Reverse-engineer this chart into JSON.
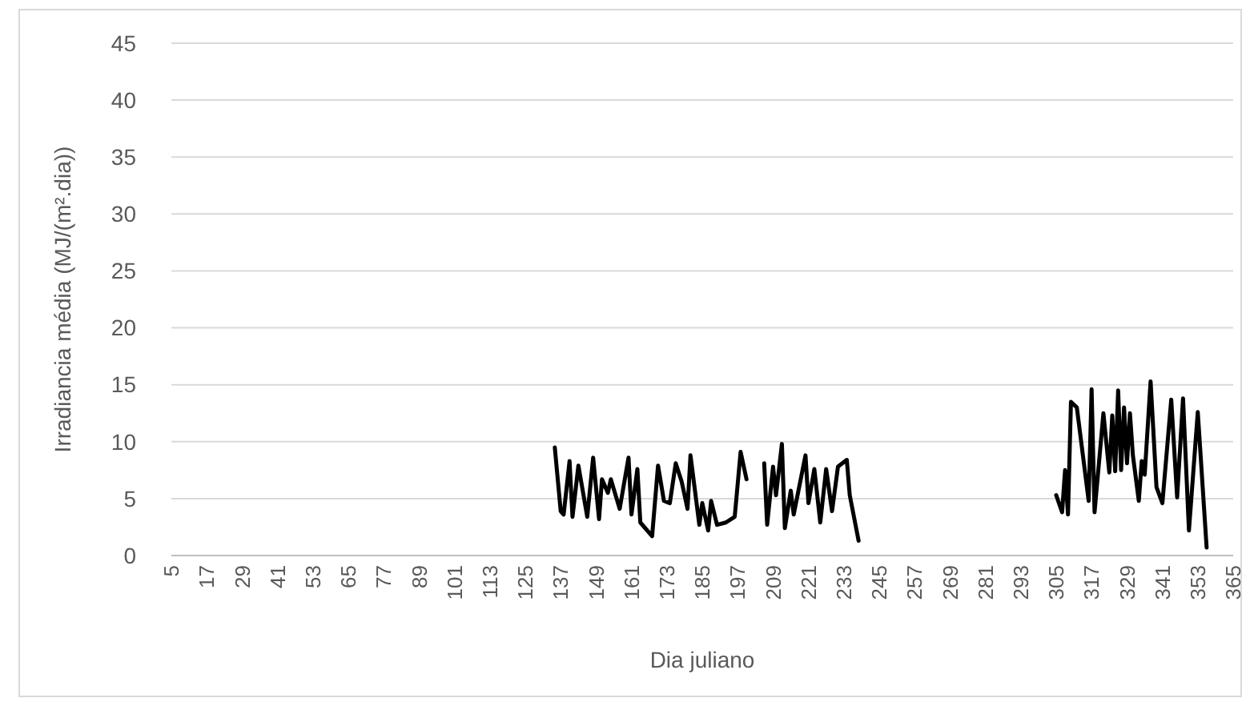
{
  "chart_data": {
    "type": "line",
    "xlabel": "Dia juliano",
    "ylabel": "Irradiancia média  (MJ/(m².dia))",
    "xlim": [
      5,
      365
    ],
    "xticks": [
      5,
      17,
      29,
      41,
      53,
      65,
      77,
      89,
      101,
      113,
      125,
      137,
      149,
      161,
      173,
      185,
      197,
      209,
      221,
      233,
      245,
      257,
      269,
      281,
      293,
      305,
      317,
      329,
      341,
      353,
      365
    ],
    "ylim": [
      0,
      45
    ],
    "yticks": [
      0,
      5,
      10,
      15,
      20,
      25,
      30,
      35,
      40,
      45
    ],
    "grid": "y",
    "marker": "none",
    "line_style": "solid",
    "series": [
      {
        "color": "#000000",
        "x": [
          135,
          137,
          138,
          140,
          141,
          143,
          146,
          148,
          150,
          151,
          153,
          154,
          157,
          160,
          161,
          163,
          164,
          168,
          170,
          172,
          174,
          176,
          178,
          180,
          181,
          184,
          185,
          187,
          188,
          190,
          193,
          196,
          198,
          200
        ],
        "values": [
          9.5,
          3.9,
          3.6,
          8.3,
          3.4,
          7.9,
          3.4,
          8.6,
          3.2,
          6.7,
          5.5,
          6.7,
          4.1,
          8.6,
          3.6,
          7.6,
          2.9,
          1.7,
          7.9,
          4.8,
          4.6,
          8.1,
          6.5,
          4.1,
          8.8,
          2.7,
          4.6,
          2.2,
          4.8,
          2.7,
          2.9,
          3.4,
          9.1,
          6.7
        ]
      },
      {
        "color": "#000000",
        "x": [
          206,
          207,
          209,
          210,
          212,
          213,
          215,
          216,
          220,
          221,
          223,
          225,
          227,
          229,
          231,
          234,
          235,
          238
        ],
        "values": [
          8.1,
          2.7,
          7.8,
          5.3,
          9.8,
          2.4,
          5.7,
          3.6,
          8.8,
          4.6,
          7.6,
          2.9,
          7.6,
          3.9,
          7.8,
          8.4,
          5.3,
          1.3
        ]
      },
      {
        "color": "#000000",
        "x": [
          305,
          307,
          308,
          309,
          310,
          312,
          316,
          317,
          318,
          321,
          323,
          324,
          325,
          326,
          327,
          328,
          329,
          330,
          331,
          333,
          334,
          335,
          337,
          339,
          341,
          344,
          346,
          348,
          350,
          353,
          356
        ],
        "values": [
          5.3,
          3.8,
          7.5,
          3.6,
          13.5,
          13.0,
          4.8,
          14.6,
          3.8,
          12.5,
          7.3,
          12.3,
          7.4,
          14.5,
          7.5,
          13.0,
          8.1,
          12.5,
          8.8,
          4.8,
          8.3,
          7.1,
          15.3,
          6.0,
          4.6,
          13.7,
          5.1,
          13.8,
          2.2,
          12.6,
          0.7
        ]
      }
    ]
  }
}
